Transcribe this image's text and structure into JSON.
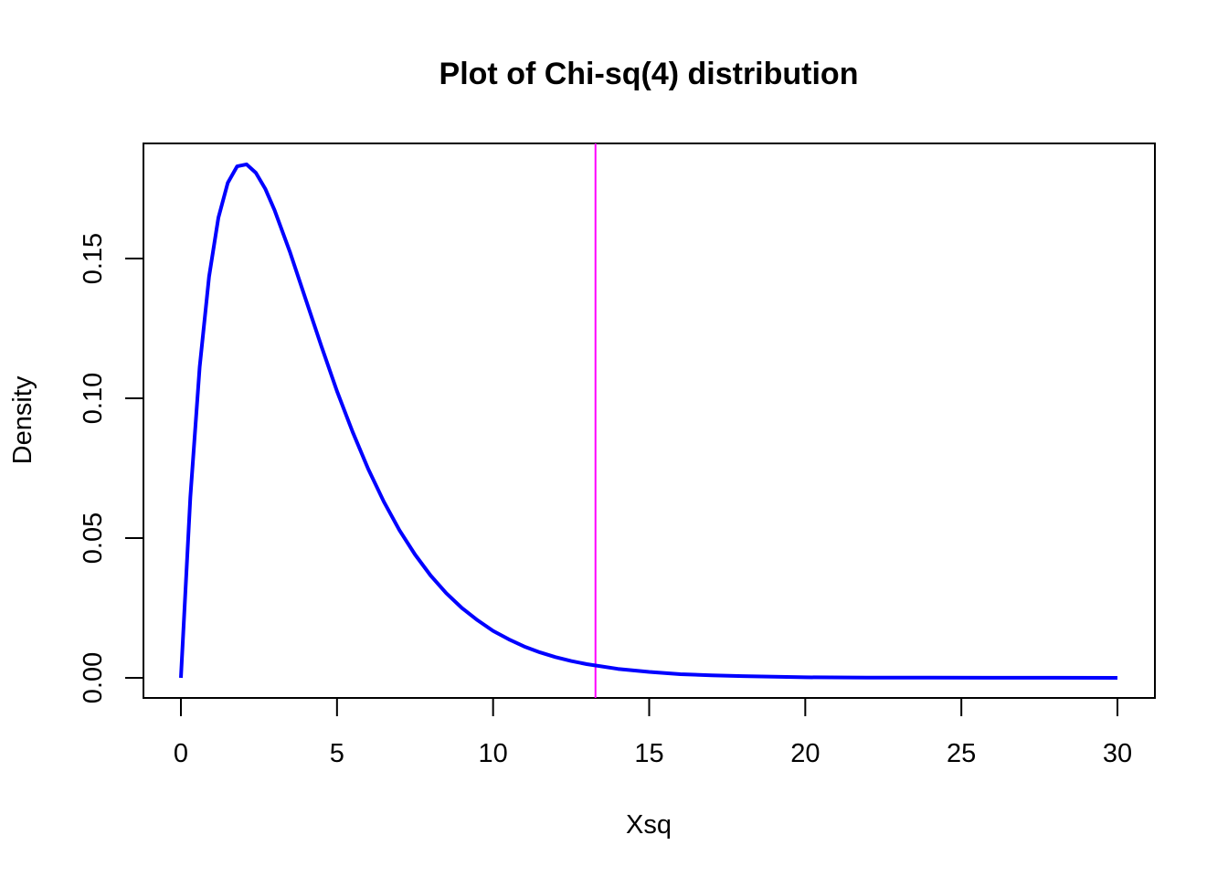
{
  "chart_data": {
    "type": "line",
    "title": "Plot of Chi-sq(4) distribution",
    "xlabel": "Xsq",
    "ylabel": "Density",
    "xlim": [
      -1.2,
      31.2
    ],
    "ylim": [
      -0.0072,
      0.1912
    ],
    "x_ticks": [
      0,
      5,
      10,
      15,
      20,
      25,
      30
    ],
    "x_tick_labels": [
      "0",
      "5",
      "10",
      "15",
      "20",
      "25",
      "30"
    ],
    "y_ticks": [
      0.0,
      0.05,
      0.1,
      0.15
    ],
    "y_tick_labels": [
      "0.00",
      "0.05",
      "0.10",
      "0.15"
    ],
    "grid": false,
    "series": [
      {
        "color": "#0000ff",
        "x": [
          0,
          0.3,
          0.6,
          0.9,
          1.2,
          1.5,
          1.8,
          2.1,
          2.4,
          2.7,
          3.0,
          3.5,
          4.0,
          4.5,
          5.0,
          5.5,
          6.0,
          6.5,
          7.0,
          7.5,
          8.0,
          8.5,
          9.0,
          9.5,
          10.0,
          10.5,
          11.0,
          11.5,
          12.0,
          12.5,
          13.0,
          14.0,
          15.0,
          16.0,
          17.0,
          18.0,
          19.0,
          20.0,
          22.0,
          24.0,
          26.0,
          28.0,
          30.0
        ],
        "y": [
          0,
          0.0645,
          0.1111,
          0.1435,
          0.1646,
          0.1771,
          0.183,
          0.1837,
          0.1807,
          0.175,
          0.1673,
          0.1521,
          0.1353,
          0.1186,
          0.1026,
          0.088,
          0.0747,
          0.063,
          0.0528,
          0.0441,
          0.0366,
          0.0303,
          0.025,
          0.0206,
          0.0168,
          0.0138,
          0.0112,
          0.0091,
          0.0074,
          0.006,
          0.0049,
          0.0032,
          0.0021,
          0.0013,
          0.0009,
          0.0006,
          0.0004,
          0.0002,
          0.0001,
          4e-05,
          1e-05,
          1e-05,
          0.0
        ]
      }
    ],
    "reference_lines": [
      {
        "orientation": "vertical",
        "x": 13.28,
        "color": "#ff00ff"
      }
    ]
  }
}
